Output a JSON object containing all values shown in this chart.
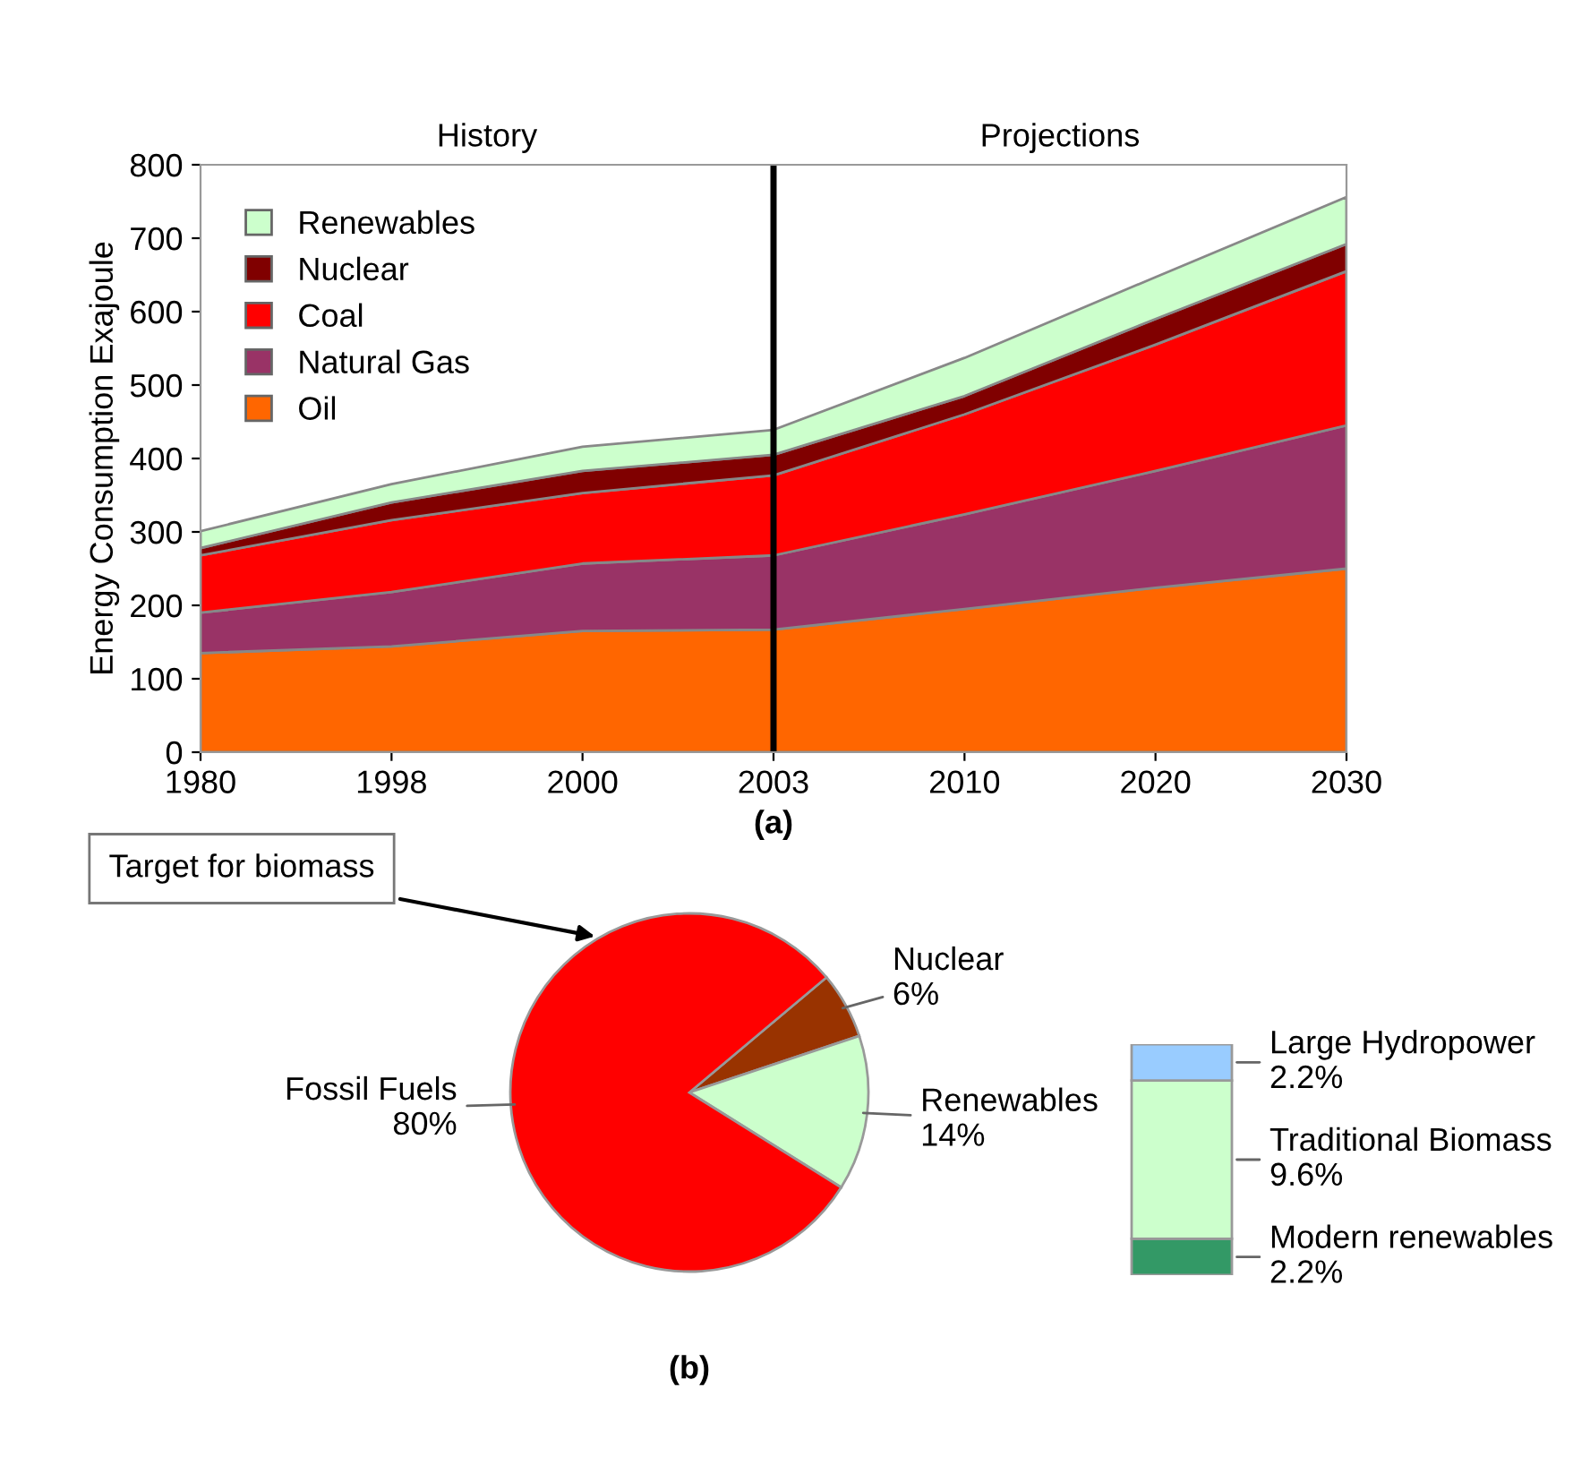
{
  "chart_data": [
    {
      "type": "area",
      "stacked": true,
      "ylabel": "Energy Consumption Exajoule",
      "xlabel": "(a)",
      "categories": [
        "1980",
        "1998",
        "2000",
        "2003",
        "2010",
        "2020",
        "2030"
      ],
      "series": [
        {
          "name": "Oil",
          "color": "#ff6600",
          "values": [
            135,
            144,
            165,
            167,
            195,
            224,
            250
          ]
        },
        {
          "name": "Natural Gas",
          "color": "#993366",
          "values": [
            55,
            74,
            92,
            101,
            129,
            159,
            195
          ]
        },
        {
          "name": "Coal",
          "color": "#ff0000",
          "values": [
            78,
            98,
            96,
            109,
            136,
            172,
            210
          ]
        },
        {
          "name": "Nuclear",
          "color": "#800000",
          "values": [
            10,
            24,
            30,
            28,
            25,
            35,
            37
          ]
        },
        {
          "name": "Renewables",
          "color": "#ccffcc",
          "values": [
            23,
            25,
            33,
            34,
            52,
            57,
            64
          ]
        }
      ],
      "ylim": [
        0,
        800
      ],
      "yticks": [
        0,
        100,
        200,
        300,
        400,
        500,
        600,
        700,
        800
      ],
      "ref_lines": [
        {
          "axis": "x",
          "value": "2003",
          "color": "#000000"
        }
      ],
      "annotations": [
        "History",
        "Projections"
      ],
      "legend": "top left",
      "grid": false
    },
    {
      "type": "pie",
      "categories": [
        "Nuclear",
        "Renewables",
        "Fossil Fuels"
      ],
      "values": [
        6,
        14,
        80
      ],
      "colors": [
        "#993300",
        "#ccffcc",
        "#ff0000"
      ],
      "value_labels": [
        "6%",
        "14%",
        "80%"
      ],
      "annotations": [
        "Target for biomass",
        "(b)"
      ]
    },
    {
      "type": "bar",
      "stacked": true,
      "categories": [
        null
      ],
      "series": [
        {
          "name": "Modern renewables",
          "color": "#339966",
          "values": [
            2.2
          ],
          "value_labels": [
            "2.2%"
          ]
        },
        {
          "name": "Traditional Biomass",
          "color": "#ccffcc",
          "values": [
            9.6
          ],
          "value_labels": [
            "9.6%"
          ]
        },
        {
          "name": "Large Hydropower",
          "color": "#99ccff",
          "values": [
            2.2
          ],
          "value_labels": [
            "2.2%"
          ]
        }
      ]
    }
  ]
}
